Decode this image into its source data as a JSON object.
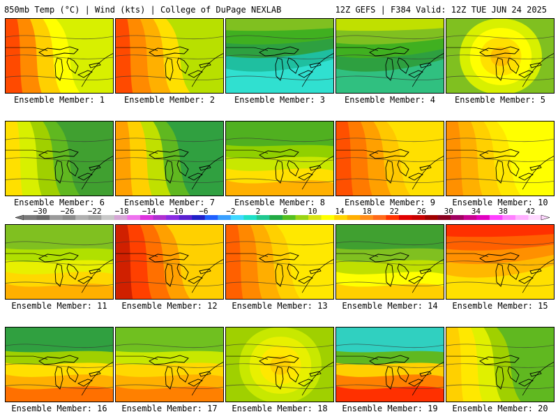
{
  "header": {
    "left": "850mb Temp (°C) | Wind (kts) | College of DuPage NEXLAB",
    "right": "12Z GEFS | F384 Valid: 12Z TUE JUN 24 2025"
  },
  "member_label_prefix": "Ensemble Member: ",
  "colorbar": {
    "tick_labels": [
      "−30",
      "−26",
      "−22",
      "−18",
      "−14",
      "−10",
      "−6",
      "−2",
      "2",
      "6",
      "10",
      "14",
      "18",
      "22",
      "26",
      "30",
      "34",
      "38",
      "42"
    ],
    "colors": [
      "#7a7a7a",
      "#6a6a6a",
      "#9a9a9a",
      "#8a8a8a",
      "#b0b0b0",
      "#a0a0a0",
      "#c8c8c8",
      "#d6a6d6",
      "#ee72ee",
      "#dd33dd",
      "#b030d0",
      "#8a2be2",
      "#5a20d0",
      "#2020c8",
      "#2060ff",
      "#3aa0ff",
      "#40d8ff",
      "#1fe0c8",
      "#20c890",
      "#22aa44",
      "#55c020",
      "#9ad414",
      "#d8e414",
      "#ffff00",
      "#ffd400",
      "#ffae00",
      "#ff8c1a",
      "#ff6a1a",
      "#ff3300",
      "#e00000",
      "#c80000",
      "#a00000",
      "#8a0020",
      "#a00060",
      "#c80090",
      "#e000c0",
      "#ff40ff",
      "#ff80ff",
      "#ffb0ff",
      "#ffd8ff"
    ]
  },
  "members": [
    {
      "label": "1",
      "palette": [
        "#ff4a00",
        "#ff8a00",
        "#ffd000",
        "#ffff00",
        "#d8f000"
      ],
      "warm_side": "left"
    },
    {
      "label": "2",
      "palette": [
        "#ff4a00",
        "#ff8a00",
        "#ffb000",
        "#ffe000",
        "#b8e000"
      ],
      "warm_side": "left"
    },
    {
      "label": "3",
      "palette": [
        "#80c020",
        "#40b020",
        "#2ea040",
        "#1fbfa0",
        "#30e0d0"
      ],
      "warm_side": "top"
    },
    {
      "label": "4",
      "palette": [
        "#c0e000",
        "#80c020",
        "#40b020",
        "#2ea040",
        "#30c080"
      ],
      "warm_side": "top"
    },
    {
      "label": "5",
      "palette": [
        "#ffc000",
        "#ffe000",
        "#ffff00",
        "#d8f000",
        "#80c020"
      ],
      "warm_side": "center"
    },
    {
      "label": "6",
      "palette": [
        "#ffe000",
        "#d8f000",
        "#a0d000",
        "#60b820",
        "#40a030"
      ],
      "warm_side": "left"
    },
    {
      "label": "7",
      "palette": [
        "#ffa000",
        "#ffd000",
        "#c0e000",
        "#60b820",
        "#30a040"
      ],
      "warm_side": "left"
    },
    {
      "label": "8",
      "palette": [
        "#ffb000",
        "#ffe000",
        "#c8e800",
        "#90d000",
        "#50b020"
      ],
      "warm_side": "bottom"
    },
    {
      "label": "9",
      "palette": [
        "#ff5000",
        "#ff7a00",
        "#ffa000",
        "#ffc800",
        "#ffe000"
      ],
      "warm_side": "left"
    },
    {
      "label": "10",
      "palette": [
        "#ff9000",
        "#ffb000",
        "#ffd000",
        "#ffe800",
        "#ffff00"
      ],
      "warm_side": "left"
    },
    {
      "label": "11",
      "palette": [
        "#ffb000",
        "#ffd800",
        "#e8f000",
        "#b0e000",
        "#80c020"
      ],
      "warm_side": "bottom"
    },
    {
      "label": "12",
      "palette": [
        "#d02000",
        "#ff4000",
        "#ff7000",
        "#ffa000",
        "#ffd000"
      ],
      "warm_side": "left"
    },
    {
      "label": "13",
      "palette": [
        "#ff6000",
        "#ff8800",
        "#ffae00",
        "#ffd000",
        "#ffe800"
      ],
      "warm_side": "left"
    },
    {
      "label": "14",
      "palette": [
        "#ffd000",
        "#ffff00",
        "#c0e000",
        "#80c020",
        "#40a030"
      ],
      "warm_side": "bottom"
    },
    {
      "label": "15",
      "palette": [
        "#ff3000",
        "#ff6000",
        "#ff9000",
        "#ffb800",
        "#ffe000"
      ],
      "warm_side": "top"
    },
    {
      "label": "16",
      "palette": [
        "#ff7000",
        "#ffb000",
        "#ffe000",
        "#a0d000",
        "#30a040"
      ],
      "warm_side": "bottom"
    },
    {
      "label": "17",
      "palette": [
        "#ff8000",
        "#ffb000",
        "#ffd800",
        "#c8e800",
        "#70c020"
      ],
      "warm_side": "bottom"
    },
    {
      "label": "18",
      "palette": [
        "#ffd000",
        "#ffe800",
        "#e8f000",
        "#c8e800",
        "#a0d000"
      ],
      "warm_side": "center"
    },
    {
      "label": "19",
      "palette": [
        "#ff3000",
        "#ff8000",
        "#ffd000",
        "#60b820",
        "#30d0c0"
      ],
      "warm_side": "bottom"
    },
    {
      "label": "20",
      "palette": [
        "#ffd000",
        "#ffe800",
        "#e0f000",
        "#a0d000",
        "#60b820"
      ],
      "warm_side": "left"
    }
  ]
}
